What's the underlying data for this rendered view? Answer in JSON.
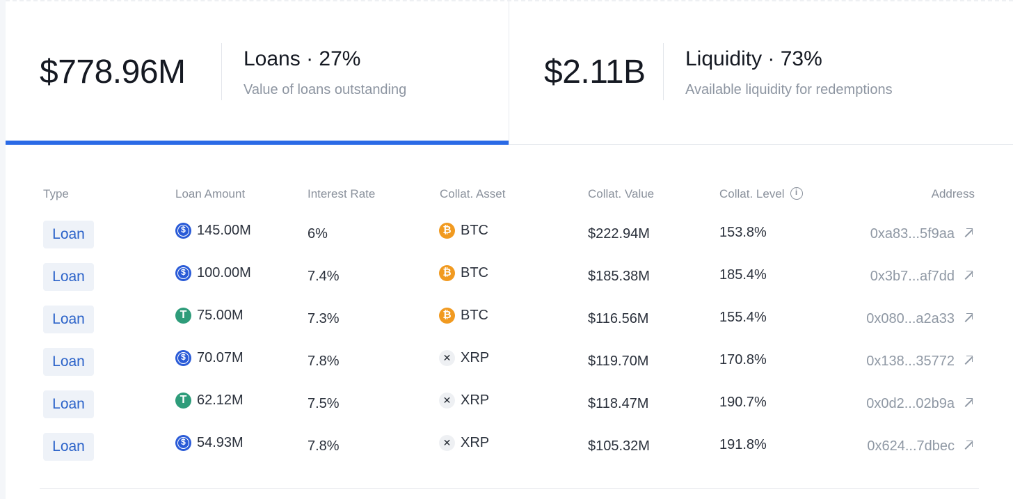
{
  "stats": {
    "loans": {
      "value": "$778.96M",
      "title": "Loans · 27%",
      "subtitle": "Value of loans outstanding"
    },
    "liquidity": {
      "value": "$2.11B",
      "title": "Liquidity · 73%",
      "subtitle": "Available liquidity for redemptions"
    }
  },
  "table": {
    "headers": {
      "type": "Type",
      "loan_amount": "Loan Amount",
      "interest_rate": "Interest Rate",
      "collat_asset": "Collat. Asset",
      "collat_value": "Collat. Value",
      "collat_level": "Collat. Level",
      "address": "Address"
    },
    "rows": [
      {
        "type": "Loan",
        "amount_icon": "usdc-icon",
        "amount": "145.00M",
        "rate": "6%",
        "asset_icon": "btc-icon",
        "asset": "BTC",
        "value": "$222.94M",
        "level": "153.8%",
        "address": "0xa83...5f9aa"
      },
      {
        "type": "Loan",
        "amount_icon": "usdc-icon",
        "amount": "100.00M",
        "rate": "7.4%",
        "asset_icon": "btc-icon",
        "asset": "BTC",
        "value": "$185.38M",
        "level": "185.4%",
        "address": "0x3b7...af7dd"
      },
      {
        "type": "Loan",
        "amount_icon": "usdt-icon",
        "amount": "75.00M",
        "rate": "7.3%",
        "asset_icon": "btc-icon",
        "asset": "BTC",
        "value": "$116.56M",
        "level": "155.4%",
        "address": "0x080...a2a33"
      },
      {
        "type": "Loan",
        "amount_icon": "usdc-icon",
        "amount": "70.07M",
        "rate": "7.8%",
        "asset_icon": "xrp-icon",
        "asset": "XRP",
        "value": "$119.70M",
        "level": "170.8%",
        "address": "0x138...35772"
      },
      {
        "type": "Loan",
        "amount_icon": "usdt-icon",
        "amount": "62.12M",
        "rate": "7.5%",
        "asset_icon": "xrp-icon",
        "asset": "XRP",
        "value": "$118.47M",
        "level": "190.7%",
        "address": "0x0d2...02b9a"
      },
      {
        "type": "Loan",
        "amount_icon": "usdc-icon",
        "amount": "54.93M",
        "rate": "7.8%",
        "asset_icon": "xrp-icon",
        "asset": "XRP",
        "value": "$105.32M",
        "level": "191.8%",
        "address": "0x624...7dbec"
      }
    ]
  },
  "colors": {
    "accent": "#2a6ae6",
    "badge_text": "#2a62c9",
    "badge_bg": "#eef2f8",
    "usdc": "#2a5bd7",
    "usdt": "#2e9c7a",
    "btc": "#f19a20"
  }
}
